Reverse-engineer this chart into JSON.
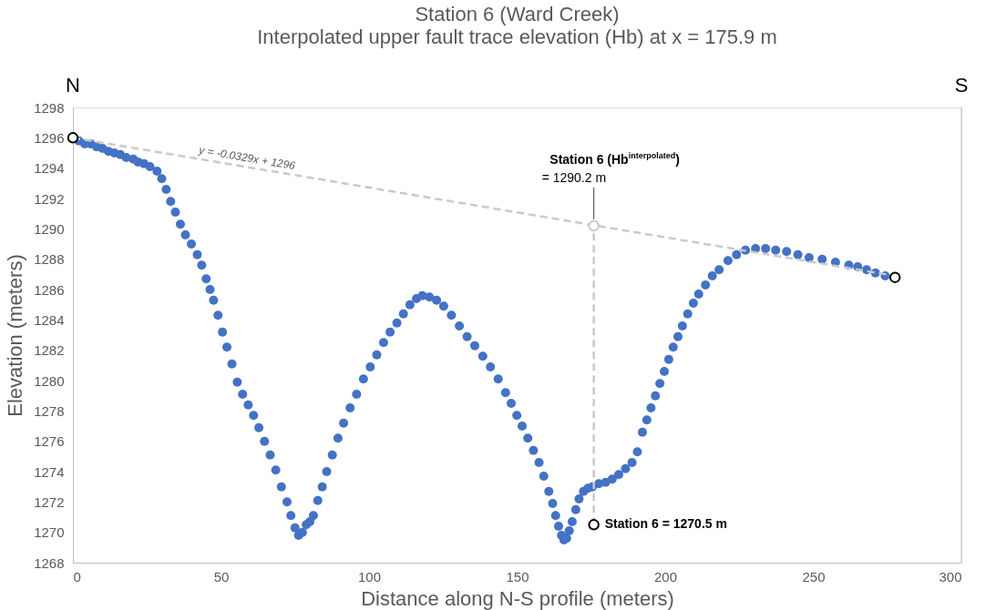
{
  "chart_data": {
    "type": "scatter",
    "title": "Station 6 (Ward Creek)",
    "subtitle": "Interpolated upper fault trace elevation (Hb) at x = 175.9 m",
    "xlabel": "Distance along N-S profile (meters)",
    "ylabel": "Elevation (meters)",
    "xlim": [
      0,
      300
    ],
    "xticks": [
      0,
      50,
      100,
      150,
      200,
      250,
      300
    ],
    "ylim": [
      1268,
      1298
    ],
    "yticks": [
      1268,
      1270,
      1272,
      1274,
      1276,
      1278,
      1280,
      1282,
      1284,
      1286,
      1288,
      1290,
      1292,
      1294,
      1296,
      1298
    ],
    "grid": false,
    "series": [
      {
        "color": "#4472c4",
        "marker": "circle",
        "x": [
          2,
          4,
          6,
          8,
          10,
          12,
          14,
          16,
          18,
          20.4,
          22,
          24,
          26,
          28.4,
          30,
          31.5,
          33,
          34.6,
          36.3,
          38,
          40,
          42,
          43.5,
          45,
          46.3,
          47.5,
          49,
          50.5,
          52,
          53.7,
          55.5,
          57.3,
          59.2,
          61,
          62.8,
          64.7,
          66.6,
          68.5,
          70.4,
          72.3,
          73.6,
          75,
          76.2,
          77.5,
          78.8,
          80,
          81.2,
          82.7,
          84.2,
          85.7,
          87.6,
          89.5,
          91.4,
          93.6,
          95.8,
          98.1,
          100.4,
          102.6,
          104.9,
          107.1,
          109.4,
          111.6,
          113.8,
          116,
          118,
          120.4,
          122.8,
          125.2,
          127.8,
          130.5,
          133.1,
          135.7,
          138.4,
          141,
          143.6,
          146.1,
          148,
          149.9,
          151.7,
          153.6,
          155.5,
          157.4,
          159,
          160.7,
          162,
          163,
          164,
          165,
          165.8,
          166.7,
          167.6,
          168.6,
          169.8,
          170.9,
          172.4,
          173.9,
          175.4,
          177.6,
          179.9,
          182.1,
          184.3,
          186.6,
          188.8,
          190.6,
          192.3,
          193.8,
          195.2,
          196.7,
          198.2,
          199.7,
          201.2,
          202.7,
          204.3,
          205.8,
          207.6,
          209.5,
          211.3,
          213.6,
          215.9,
          218.2,
          221.2,
          224.1,
          227.1,
          230.5,
          233.9,
          237.3,
          241,
          244.8,
          248.6,
          253,
          257.5,
          262,
          265,
          268,
          271,
          274.3
        ],
        "values": [
          1295.8,
          1295.6,
          1295.6,
          1295.4,
          1295.3,
          1295.1,
          1295,
          1294.9,
          1294.7,
          1294.6,
          1294.4,
          1294.3,
          1294.1,
          1293.8,
          1293.3,
          1292.6,
          1291.8,
          1291.1,
          1290.3,
          1289.6,
          1289,
          1288.3,
          1287.6,
          1286.7,
          1286,
          1285.3,
          1284.3,
          1283.2,
          1282.2,
          1281.1,
          1279.9,
          1279.1,
          1278.4,
          1277.7,
          1276.9,
          1276,
          1275.1,
          1274.1,
          1273,
          1272,
          1271.1,
          1270.3,
          1269.8,
          1270,
          1270.5,
          1270.7,
          1271.1,
          1272.1,
          1273,
          1274,
          1275.1,
          1276.2,
          1277.2,
          1278.2,
          1279.1,
          1280.1,
          1280.9,
          1281.7,
          1282.5,
          1283.2,
          1283.8,
          1284.4,
          1285,
          1285.4,
          1285.6,
          1285.5,
          1285.3,
          1284.9,
          1284.3,
          1283.6,
          1282.9,
          1282.3,
          1281.6,
          1280.9,
          1280.1,
          1279.2,
          1278.5,
          1277.7,
          1277,
          1276.2,
          1275.4,
          1274.6,
          1273.7,
          1272.7,
          1271.9,
          1271.1,
          1270.4,
          1269.8,
          1269.5,
          1269.6,
          1270.1,
          1270.7,
          1271.5,
          1272.2,
          1272.7,
          1272.9,
          1273,
          1273.2,
          1273.3,
          1273.5,
          1273.8,
          1274.2,
          1274.6,
          1275.3,
          1276.6,
          1277.4,
          1278.2,
          1279,
          1279.8,
          1280.6,
          1281.4,
          1282.2,
          1282.9,
          1283.6,
          1284.4,
          1285.1,
          1285.7,
          1286.3,
          1286.9,
          1287.3,
          1287.9,
          1288.3,
          1288.6,
          1288.7,
          1288.7,
          1288.6,
          1288.5,
          1288.3,
          1288.1,
          1288,
          1287.8,
          1287.6,
          1287.5,
          1287.3,
          1287.1,
          1286.9
        ]
      },
      {
        "type": "line",
        "color": "#c9c9c9",
        "line_style": "dashed",
        "x": [
          0,
          277.6
        ],
        "values": [
          1296,
          1286.9
        ]
      },
      {
        "type": "line",
        "color": "#c9c9c9",
        "line_style": "dashed",
        "x": [
          175.9,
          175.9
        ],
        "values": [
          1270.5,
          1290.2
        ]
      },
      {
        "color": "#000000",
        "marker": "circle",
        "x": [
          0,
          277.6
        ],
        "values": [
          1296,
          1286.8
        ]
      },
      {
        "color": "#c9c9c9",
        "marker": "circle",
        "x": [
          175.9
        ],
        "values": [
          1290.2
        ]
      },
      {
        "color": "#000000",
        "marker": "circle",
        "x": [
          175.9
        ],
        "values": [
          1270.5
        ]
      }
    ],
    "annotations": [
      "N",
      "S",
      "y = -0.0329x + 1296",
      "Station 6 (Hb$^{interpolated}$)",
      {
        "text": "= 1290.2 m",
        "x": 175.9,
        "y": 1290.2
      },
      "Station 6 = 1270.5 m"
    ]
  }
}
